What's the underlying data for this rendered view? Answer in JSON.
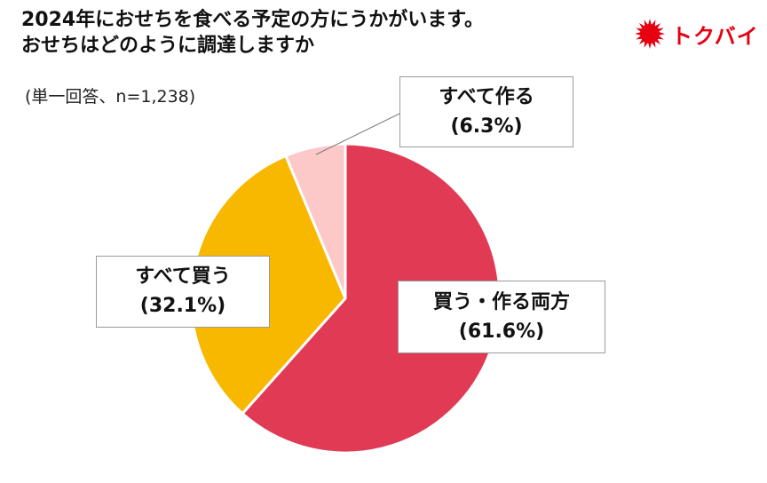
{
  "header": {
    "title_line1": "2024年におせちを食べる予定の方にうかがいます。",
    "title_line2": "おせちはどのように調達しますか",
    "note": "(単一回答、n=1,238)"
  },
  "logo": {
    "text": "トクバイ",
    "color": "#e60012",
    "icon": "red-sun-burst"
  },
  "chart_data": {
    "type": "pie",
    "title": "2024年におせちを食べる予定の方にうかがいます。おせちはどのように調達しますか",
    "note": "(単一回答、n=1,238)",
    "slices": [
      {
        "label": "買う・作る両方",
        "value": 61.6,
        "display": "(61.6%)",
        "color": "#e03a55"
      },
      {
        "label": "すべて買う",
        "value": 32.1,
        "display": "(32.1%)",
        "color": "#f8b800"
      },
      {
        "label": "すべて作る",
        "value": 6.3,
        "display": "(6.3%)",
        "color": "#fcc8c8"
      }
    ],
    "start": "12 o'clock",
    "direction": "clockwise"
  }
}
